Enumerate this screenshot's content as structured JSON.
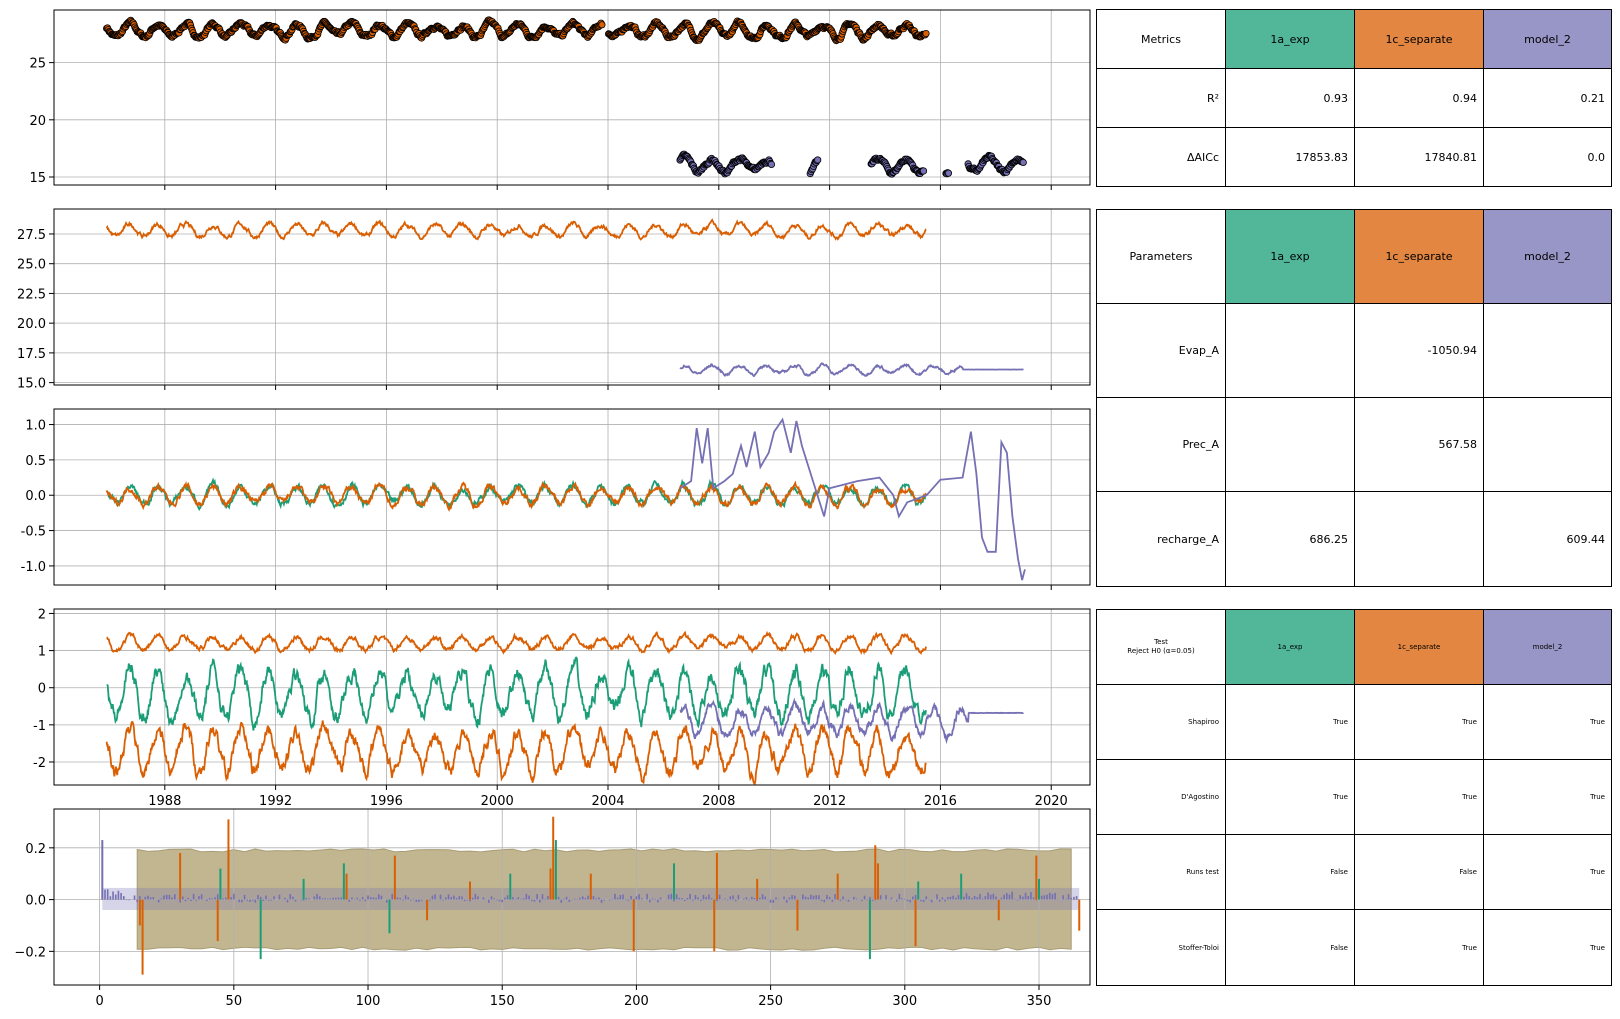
{
  "colors": {
    "model_1a": "#1b9e77",
    "model_1c": "#d95f02",
    "model_2": "#7570b3",
    "header_1a": "#52b799",
    "header_1c": "#e28641",
    "header_2": "#9896c7",
    "grid": "#b0b0b0",
    "confidence_band": "#c2b690"
  },
  "chart_data": [
    {
      "type": "scatter",
      "panel": "observations",
      "ylim": [
        14.3,
        29.6
      ],
      "y_ticks": [
        15,
        20,
        25
      ],
      "x_ticks": [
        1988,
        1992,
        1996,
        2000,
        2004,
        2008,
        2012,
        2016,
        2020
      ],
      "grid": true,
      "series": [
        {
          "color": "model_1c",
          "x_start": 1985.9,
          "x_end": 2015.5,
          "mean": 27.8,
          "amplitude": 0.55,
          "gaps": [
            [
              2003.8,
              2004.0
            ]
          ]
        },
        {
          "color": "model_2",
          "segments": [
            [
              2006.6,
              2009.9
            ],
            [
              2011.3,
              2011.6
            ],
            [
              2013.5,
              2015.4
            ],
            [
              2016.2,
              2016.3
            ],
            [
              2017.0,
              2018.3
            ],
            [
              2018.3,
              2019.0
            ]
          ],
          "mean": 16.0,
          "amplitude": 0.6
        }
      ]
    },
    {
      "type": "line",
      "panel": "simulations",
      "ylim": [
        14.8,
        29.6
      ],
      "y_ticks": [
        15.0,
        17.5,
        20.0,
        22.5,
        25.0,
        27.5
      ],
      "x_ticks": [
        1988,
        1992,
        1996,
        2000,
        2004,
        2008,
        2012,
        2016,
        2020
      ],
      "grid": true,
      "series": [
        {
          "color": "model_1c",
          "x_start": 1985.9,
          "x_end": 2015.5,
          "mean": 27.8,
          "amplitude": 0.5
        },
        {
          "color": "model_2",
          "x_start": 2006.6,
          "x_end": 2019.0,
          "mean": 16.1,
          "amplitude": 0.35,
          "flat_after": 2016.8,
          "flat_value": 16.1
        }
      ]
    },
    {
      "type": "line",
      "panel": "residuals",
      "ylim": [
        -1.27,
        1.22
      ],
      "y_ticks": [
        -1.0,
        -0.5,
        0.0,
        0.5,
        1.0
      ],
      "x_ticks": [
        1988,
        1992,
        1996,
        2000,
        2004,
        2008,
        2012,
        2016,
        2020
      ],
      "grid": true,
      "series": [
        {
          "color": "model_1a",
          "x_start": 1985.9,
          "x_end": 2015.5,
          "mean": 0.0,
          "amplitude": 0.12
        },
        {
          "color": "model_1c",
          "x_start": 1985.9,
          "x_end": 2015.5,
          "mean": 0.0,
          "amplitude": 0.12
        },
        {
          "color": "model_2",
          "x_start": 2006.6,
          "x_end": 2019.0,
          "points": [
            [
              2006.6,
              0.1
            ],
            [
              2007.0,
              0.2
            ],
            [
              2007.2,
              0.95
            ],
            [
              2007.4,
              0.45
            ],
            [
              2007.6,
              0.95
            ],
            [
              2007.8,
              0.1
            ],
            [
              2008.2,
              0.2
            ],
            [
              2008.5,
              0.3
            ],
            [
              2008.8,
              0.7
            ],
            [
              2009.0,
              0.4
            ],
            [
              2009.3,
              0.9
            ],
            [
              2009.5,
              0.4
            ],
            [
              2009.8,
              0.6
            ],
            [
              2010.0,
              0.9
            ],
            [
              2010.3,
              1.07
            ],
            [
              2010.6,
              0.6
            ],
            [
              2010.8,
              1.05
            ],
            [
              2011.0,
              0.7
            ],
            [
              2011.4,
              0.2
            ],
            [
              2011.8,
              -0.3
            ],
            [
              2012.0,
              0.1
            ],
            [
              2013.0,
              0.2
            ],
            [
              2013.8,
              0.25
            ],
            [
              2014.3,
              0.0
            ],
            [
              2014.5,
              -0.3
            ],
            [
              2014.8,
              -0.1
            ],
            [
              2015.5,
              0.0
            ],
            [
              2016.0,
              0.22
            ],
            [
              2016.8,
              0.25
            ],
            [
              2017.1,
              0.9
            ],
            [
              2017.3,
              0.3
            ],
            [
              2017.5,
              -0.6
            ],
            [
              2017.7,
              -0.8
            ],
            [
              2018.0,
              -0.8
            ],
            [
              2018.2,
              0.75
            ],
            [
              2018.4,
              0.6
            ],
            [
              2018.6,
              -0.3
            ],
            [
              2018.8,
              -0.9
            ],
            [
              2018.95,
              -1.2
            ],
            [
              2019.05,
              -1.05
            ]
          ]
        }
      ]
    },
    {
      "type": "line",
      "panel": "contributions",
      "ylim": [
        -2.62,
        2.12
      ],
      "y_ticks": [
        -2,
        -1,
        0,
        1,
        2
      ],
      "x_ticks": [
        1988,
        1992,
        1996,
        2000,
        2004,
        2008,
        2012,
        2016,
        2020
      ],
      "x_tick_labels": [
        "1988",
        "1992",
        "1996",
        "2000",
        "2004",
        "2008",
        "2012",
        "2016",
        "2020"
      ],
      "grid": true,
      "series": [
        {
          "color": "model_1c",
          "x_start": 1985.9,
          "x_end": 2015.5,
          "mean": 1.2,
          "amplitude": 0.18
        },
        {
          "color": "model_1a",
          "x_start": 1985.9,
          "x_end": 2015.5,
          "mean": -0.15,
          "amplitude": 0.6
        },
        {
          "color": "model_1c",
          "x_start": 1985.9,
          "x_end": 2015.5,
          "mean": -1.7,
          "amplitude": 0.55
        },
        {
          "color": "model_2",
          "x_start": 2006.6,
          "x_end": 2019.0,
          "mean": -0.85,
          "amplitude": 0.35,
          "flat_after": 2017.0,
          "flat_value": -0.68
        }
      ]
    },
    {
      "type": "bar",
      "panel": "autocorrelation",
      "xlim": [
        -17,
        369
      ],
      "ylim": [
        -0.33,
        0.35
      ],
      "y_ticks": [
        -0.2,
        0.0,
        0.2
      ],
      "x_ticks": [
        0,
        50,
        100,
        150,
        200,
        250,
        300,
        350
      ],
      "grid": true,
      "confidence_band": {
        "x_start": 14,
        "x_end": 365,
        "upper": 0.19,
        "lower": -0.19
      },
      "model_2_band": {
        "upper": 0.045,
        "lower": -0.04
      },
      "spikes": [
        {
          "x": 1,
          "y": 0.23,
          "color": "model_2"
        },
        {
          "x": 15,
          "y": -0.1,
          "color": "model_1c"
        },
        {
          "x": 16,
          "y": -0.29,
          "color": "model_1c"
        },
        {
          "x": 30,
          "y": 0.18,
          "color": "model_1c"
        },
        {
          "x": 44,
          "y": -0.16,
          "color": "model_1c"
        },
        {
          "x": 45,
          "y": 0.12,
          "color": "model_1a"
        },
        {
          "x": 48,
          "y": 0.31,
          "color": "model_1c"
        },
        {
          "x": 60,
          "y": -0.23,
          "color": "model_1a"
        },
        {
          "x": 76,
          "y": 0.08,
          "color": "model_1a"
        },
        {
          "x": 91,
          "y": 0.14,
          "color": "model_1a"
        },
        {
          "x": 92,
          "y": 0.1,
          "color": "model_1c"
        },
        {
          "x": 108,
          "y": -0.13,
          "color": "model_1a"
        },
        {
          "x": 110,
          "y": 0.17,
          "color": "model_1c"
        },
        {
          "x": 122,
          "y": -0.08,
          "color": "model_1c"
        },
        {
          "x": 138,
          "y": 0.07,
          "color": "model_1c"
        },
        {
          "x": 153,
          "y": 0.1,
          "color": "model_1a"
        },
        {
          "x": 168,
          "y": 0.12,
          "color": "model_1c"
        },
        {
          "x": 169,
          "y": 0.32,
          "color": "model_1c"
        },
        {
          "x": 170,
          "y": 0.23,
          "color": "model_1a"
        },
        {
          "x": 183,
          "y": 0.1,
          "color": "model_1c"
        },
        {
          "x": 199,
          "y": -0.2,
          "color": "model_1c"
        },
        {
          "x": 214,
          "y": 0.14,
          "color": "model_1a"
        },
        {
          "x": 229,
          "y": -0.2,
          "color": "model_1c"
        },
        {
          "x": 230,
          "y": 0.18,
          "color": "model_1c"
        },
        {
          "x": 245,
          "y": 0.08,
          "color": "model_1c"
        },
        {
          "x": 260,
          "y": -0.12,
          "color": "model_1c"
        },
        {
          "x": 275,
          "y": 0.1,
          "color": "model_1c"
        },
        {
          "x": 287,
          "y": -0.23,
          "color": "model_1a"
        },
        {
          "x": 289,
          "y": 0.21,
          "color": "model_1c"
        },
        {
          "x": 290,
          "y": 0.14,
          "color": "model_1c"
        },
        {
          "x": 304,
          "y": -0.18,
          "color": "model_1c"
        },
        {
          "x": 305,
          "y": 0.07,
          "color": "model_1a"
        },
        {
          "x": 321,
          "y": 0.1,
          "color": "model_1a"
        },
        {
          "x": 335,
          "y": -0.08,
          "color": "model_1c"
        },
        {
          "x": 349,
          "y": 0.17,
          "color": "model_1c"
        },
        {
          "x": 350,
          "y": 0.08,
          "color": "model_1a"
        },
        {
          "x": 365,
          "y": -0.12,
          "color": "model_1c"
        }
      ]
    }
  ],
  "tables": {
    "metrics": {
      "header_label": "Metrics",
      "models": [
        "1a_exp",
        "1c_separate",
        "model_2"
      ],
      "rows": [
        {
          "label": "R²",
          "values": [
            "0.93",
            "0.94",
            "0.21"
          ]
        },
        {
          "label": "ΔAICc",
          "values": [
            "17853.83",
            "17840.81",
            "0.0"
          ]
        }
      ]
    },
    "parameters": {
      "header_label": "Parameters",
      "models": [
        "1a_exp",
        "1c_separate",
        "model_2"
      ],
      "rows": [
        {
          "label": "Evap_A",
          "values": [
            "",
            "-1050.94",
            ""
          ]
        },
        {
          "label": "Prec_A",
          "values": [
            "",
            "567.58",
            ""
          ]
        },
        {
          "label": "recharge_A",
          "values": [
            "686.25",
            "",
            "609.44"
          ]
        }
      ]
    },
    "tests": {
      "header_label": "Test\nReject H0 (α=0.05)",
      "models": [
        "1a_exp",
        "1c_separate",
        "model_2"
      ],
      "rows": [
        {
          "label": "Shapiroo",
          "values": [
            "True",
            "True",
            "True"
          ]
        },
        {
          "label": "D'Agostino",
          "values": [
            "True",
            "True",
            "True"
          ]
        },
        {
          "label": "Runs test",
          "values": [
            "False",
            "False",
            "True"
          ]
        },
        {
          "label": "Stoffer-Toloi",
          "values": [
            "False",
            "True",
            "True"
          ]
        }
      ]
    }
  }
}
